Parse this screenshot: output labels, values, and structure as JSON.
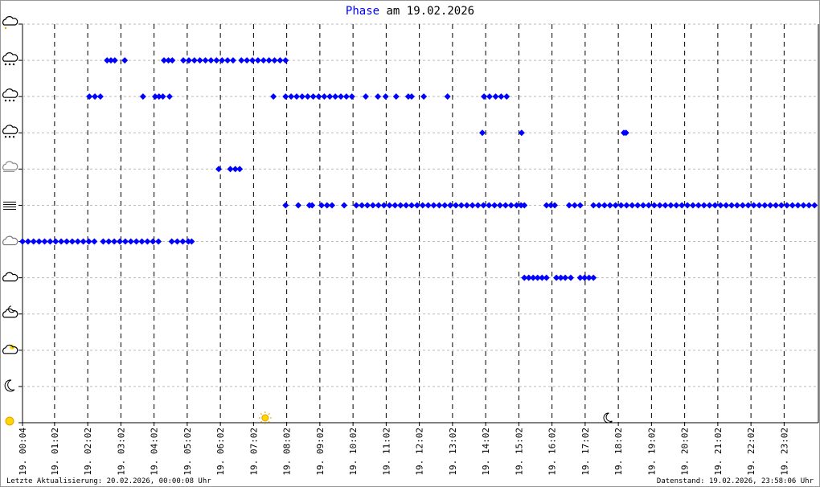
{
  "chart_data": {
    "type": "scatter",
    "title": "Phase",
    "title_date": "am 19.02.2026",
    "footer_left": "Letzte Aktualisierung: 20.02.2026, 00:00:08 Uhr",
    "footer_right": "Datenstand: 19.02.2026, 23:58:06 Uhr",
    "xlim": [
      4,
      1444
    ],
    "ylim": [
      0,
      11
    ],
    "yticks": [
      0,
      1,
      2,
      3,
      4,
      5,
      6,
      7,
      8,
      9,
      10,
      11
    ],
    "xticks": [
      {
        "value": 4,
        "label": "19. 00:04"
      },
      {
        "value": 62,
        "label": "19. 01:02"
      },
      {
        "value": 122,
        "label": "19. 02:02"
      },
      {
        "value": 182,
        "label": "19. 03:02"
      },
      {
        "value": 242,
        "label": "19. 04:02"
      },
      {
        "value": 302,
        "label": "19. 05:02"
      },
      {
        "value": 362,
        "label": "19. 06:02"
      },
      {
        "value": 422,
        "label": "19. 07:02"
      },
      {
        "value": 482,
        "label": "19. 08:02"
      },
      {
        "value": 542,
        "label": "19. 09:02"
      },
      {
        "value": 602,
        "label": "19. 10:02"
      },
      {
        "value": 662,
        "label": "19. 11:02"
      },
      {
        "value": 722,
        "label": "19. 12:02"
      },
      {
        "value": 782,
        "label": "19. 13:02"
      },
      {
        "value": 842,
        "label": "19. 14:02"
      },
      {
        "value": 902,
        "label": "19. 15:02"
      },
      {
        "value": 962,
        "label": "19. 16:02"
      },
      {
        "value": 1022,
        "label": "19. 17:02"
      },
      {
        "value": 1082,
        "label": "19. 18:02"
      },
      {
        "value": 1142,
        "label": "19. 19:02"
      },
      {
        "value": 1202,
        "label": "19. 20:02"
      },
      {
        "value": 1262,
        "label": "19. 21:02"
      },
      {
        "value": 1322,
        "label": "19. 22:02"
      },
      {
        "value": 1382,
        "label": "19. 23:02"
      }
    ],
    "sunrise": 443,
    "sunset": 1065,
    "color": "#0000ff",
    "grid": true,
    "series": [
      {
        "x": [
          4,
          14,
          24,
          34,
          44,
          54,
          64,
          74,
          84,
          94,
          104,
          114,
          124,
          134,
          150,
          160,
          170,
          180,
          190,
          200,
          210,
          220,
          230,
          240,
          250,
          274,
          284,
          294,
          304,
          310
        ],
        "values": [
          5,
          5,
          5,
          5,
          5,
          5,
          5,
          5,
          5,
          5,
          5,
          5,
          5,
          5,
          5,
          5,
          5,
          5,
          5,
          5,
          5,
          5,
          5,
          5,
          5,
          5,
          5,
          5,
          5,
          5
        ]
      },
      {
        "x": [
          125,
          135,
          145,
          222,
          244,
          251,
          258,
          270,
          458,
          480,
          490,
          500,
          510,
          520,
          530,
          540,
          550,
          560,
          570,
          580,
          590,
          600,
          625,
          647,
          661,
          680,
          702,
          708,
          730,
          773,
          839,
          849,
          860,
          870,
          880
        ],
        "values": [
          9,
          9,
          9,
          9,
          9,
          9,
          9,
          9,
          9,
          9,
          9,
          9,
          9,
          9,
          9,
          9,
          9,
          9,
          9,
          9,
          9,
          9,
          9,
          9,
          9,
          9,
          9,
          9,
          9,
          9,
          9,
          9,
          9,
          9,
          9
        ]
      },
      {
        "x": [
          157,
          164,
          171,
          189,
          260,
          268,
          275,
          295,
          305,
          315,
          325,
          335,
          345,
          355,
          365,
          375,
          385,
          400,
          410,
          420,
          430,
          440,
          450,
          460,
          470,
          480
        ],
        "values": [
          10,
          10,
          10,
          10,
          10,
          10,
          10,
          10,
          10,
          10,
          10,
          10,
          10,
          10,
          10,
          10,
          10,
          10,
          10,
          10,
          10,
          10,
          10,
          10,
          10,
          10
        ]
      },
      {
        "x": [
          836,
          907,
          1092,
          1096
        ],
        "values": [
          8,
          8,
          8,
          8
        ]
      },
      {
        "x": [
          359,
          380,
          389,
          397
        ],
        "values": [
          7,
          7,
          7,
          7
        ]
      },
      {
        "x": [
          480,
          503,
          523,
          528,
          545,
          555,
          564,
          586,
          608,
          618,
          628,
          638,
          648,
          658,
          668,
          678,
          688,
          698,
          708,
          718,
          728,
          738,
          748,
          758,
          768,
          778,
          788,
          798,
          808,
          818,
          828,
          838,
          848,
          858,
          868,
          878,
          888,
          898,
          906,
          912,
          952,
          960,
          967,
          993,
          1003,
          1013,
          1037,
          1047,
          1057,
          1067,
          1077,
          1087,
          1097,
          1107,
          1117,
          1127,
          1137,
          1147,
          1157,
          1167,
          1177,
          1187,
          1197,
          1207,
          1217,
          1227,
          1237,
          1247,
          1257,
          1267,
          1277,
          1287,
          1297,
          1307,
          1317,
          1327,
          1337,
          1347,
          1357,
          1367,
          1377,
          1387,
          1397,
          1407,
          1417,
          1427,
          1437
        ],
        "values": [
          6,
          6,
          6,
          6,
          6,
          6,
          6,
          6,
          6,
          6,
          6,
          6,
          6,
          6,
          6,
          6,
          6,
          6,
          6,
          6,
          6,
          6,
          6,
          6,
          6,
          6,
          6,
          6,
          6,
          6,
          6,
          6,
          6,
          6,
          6,
          6,
          6,
          6,
          6,
          6,
          6,
          6,
          6,
          6,
          6,
          6,
          6,
          6,
          6,
          6,
          6,
          6,
          6,
          6,
          6,
          6,
          6,
          6,
          6,
          6,
          6,
          6,
          6,
          6,
          6,
          6,
          6,
          6,
          6,
          6,
          6,
          6,
          6,
          6,
          6,
          6,
          6,
          6,
          6,
          6,
          6,
          6,
          6,
          6,
          6,
          6,
          6
        ]
      },
      {
        "x": [
          912,
          920,
          928,
          936,
          944,
          952,
          970,
          978,
          986,
          996,
          1013,
          1021,
          1029,
          1037
        ],
        "values": [
          4,
          4,
          4,
          4,
          4,
          4,
          4,
          4,
          4,
          4,
          4,
          4,
          4,
          4
        ]
      }
    ]
  }
}
